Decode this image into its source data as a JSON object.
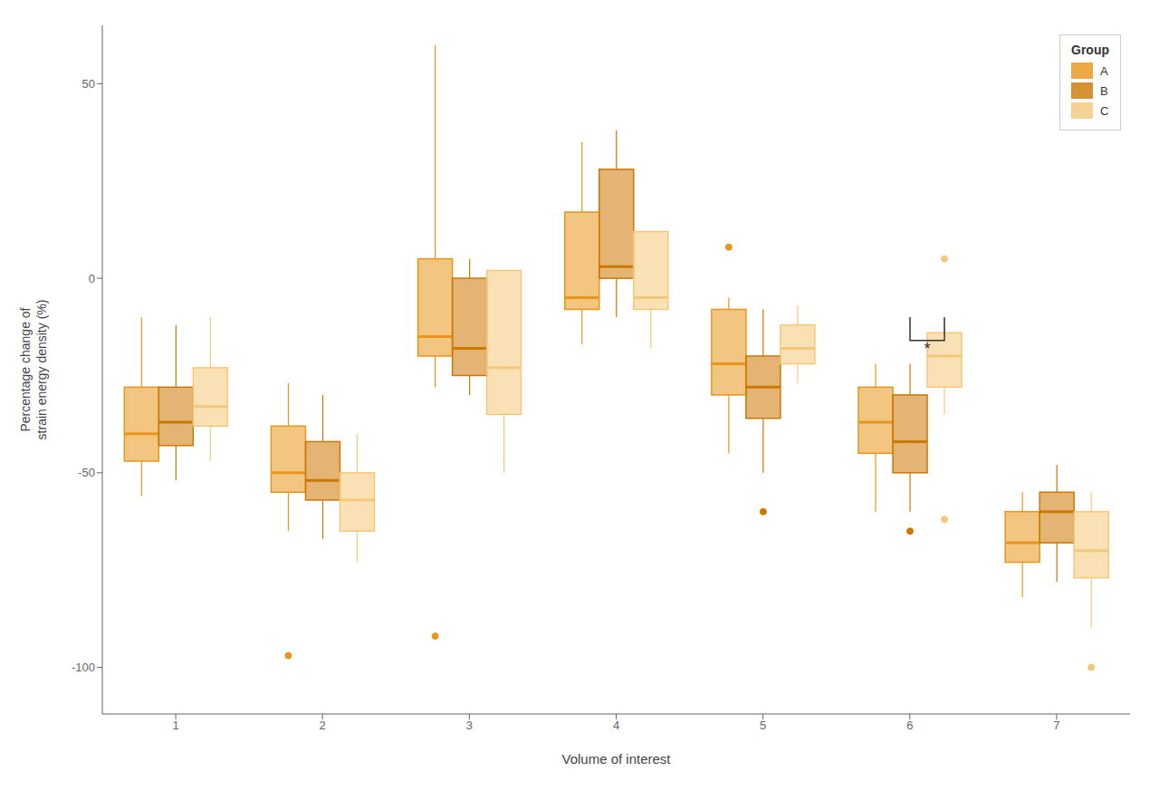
{
  "chart_data": {
    "type": "box",
    "xlabel": "Volume of interest",
    "ylabel": "Percentage change of\nstrain energy density (%)",
    "categories": [
      "1",
      "2",
      "3",
      "4",
      "5",
      "6",
      "7"
    ],
    "ylim": [
      -112,
      65
    ],
    "yticks": [
      -100,
      -50,
      0,
      50
    ],
    "grid": false,
    "legend": "upper right",
    "legend_title": "Group",
    "series": [
      {
        "name": "A",
        "color": "#E8951A",
        "q1": [
          -47,
          -55,
          -20,
          -8,
          -30,
          -45,
          -73
        ],
        "median": [
          -40,
          -50,
          -15,
          -5,
          -22,
          -37,
          -68
        ],
        "q3": [
          -28,
          -38,
          5,
          17,
          -8,
          -28,
          -60
        ],
        "whislo": [
          -56,
          -65,
          -28,
          -17,
          -45,
          -60,
          -82
        ],
        "whishi": [
          -10,
          -27,
          60,
          35,
          -5,
          -22,
          -55
        ],
        "fliers": [
          [],
          [
            -97
          ],
          [
            -92
          ],
          [],
          [
            8
          ],
          [],
          []
        ]
      },
      {
        "name": "B",
        "color": "#CC7700",
        "q1": [
          -43,
          -57,
          -25,
          0,
          -36,
          -50,
          -68
        ],
        "median": [
          -37,
          -52,
          -18,
          3,
          -28,
          -42,
          -60
        ],
        "q3": [
          -28,
          -42,
          0,
          28,
          -20,
          -30,
          -55
        ],
        "whislo": [
          -52,
          -67,
          -30,
          -10,
          -50,
          -60,
          -78
        ],
        "whishi": [
          -12,
          -30,
          5,
          38,
          -8,
          -22,
          -48
        ],
        "fliers": [
          [],
          [],
          [],
          [],
          [
            -60
          ],
          [
            -65
          ],
          []
        ]
      },
      {
        "name": "C",
        "color": "#F5C878",
        "q1": [
          -38,
          -65,
          -35,
          -8,
          -22,
          -28,
          -77
        ],
        "median": [
          -33,
          -57,
          -23,
          -5,
          -18,
          -20,
          -70
        ],
        "q3": [
          -23,
          -50,
          2,
          12,
          -12,
          -14,
          -60
        ],
        "whislo": [
          -47,
          -73,
          -50,
          -18,
          -27,
          -35,
          -90
        ],
        "whishi": [
          -10,
          -40,
          2,
          12,
          -7,
          -12,
          -55
        ],
        "fliers": [
          [],
          [],
          [],
          [],
          [],
          [
            5,
            -62
          ],
          [
            -100
          ]
        ]
      }
    ],
    "annotations": [
      {
        "text": "*",
        "category": "6",
        "from": "B",
        "to": "C",
        "y_top": -10,
        "y_bottom": -16
      }
    ]
  }
}
